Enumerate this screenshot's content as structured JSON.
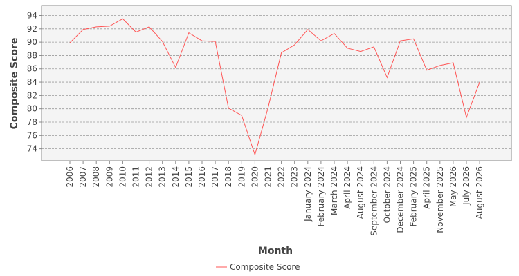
{
  "chart_data": {
    "type": "line",
    "title": "",
    "xlabel": "Month",
    "ylabel": "Composite Score",
    "categories": [
      "2006",
      "2007",
      "2008",
      "2009",
      "2010",
      "2011",
      "2012",
      "2013",
      "2014",
      "2015",
      "2016",
      "2017",
      "2018",
      "2019",
      "2020",
      "2021",
      "2022",
      "2023",
      "January 2024",
      "February 2024",
      "March 2024",
      "April 2024",
      "August 2024",
      "September 2024",
      "October 2024",
      "December 2024",
      "February 2025",
      "April 2025",
      "November 2025",
      "May 2026",
      "July 2026",
      "August 2026"
    ],
    "series": [
      {
        "name": "Composite Score",
        "color": "#ff5555",
        "values": [
          89.9,
          91.9,
          92.3,
          92.4,
          93.5,
          91.5,
          92.3,
          90.1,
          86.2,
          91.4,
          90.2,
          90.1,
          80.1,
          79.0,
          73.1,
          80.2,
          88.4,
          89.6,
          91.9,
          90.2,
          91.3,
          89.1,
          88.6,
          89.3,
          84.7,
          90.2,
          90.5,
          85.8,
          86.5,
          86.9,
          78.7,
          84.0
        ]
      }
    ],
    "yticks": [
      74,
      76,
      78,
      80,
      82,
      84,
      86,
      88,
      90,
      92,
      94
    ],
    "ylim": [
      72.2,
      95.5
    ],
    "grid": true,
    "legend_position": "bottom-center",
    "plot_background": "#f4f4f4"
  }
}
